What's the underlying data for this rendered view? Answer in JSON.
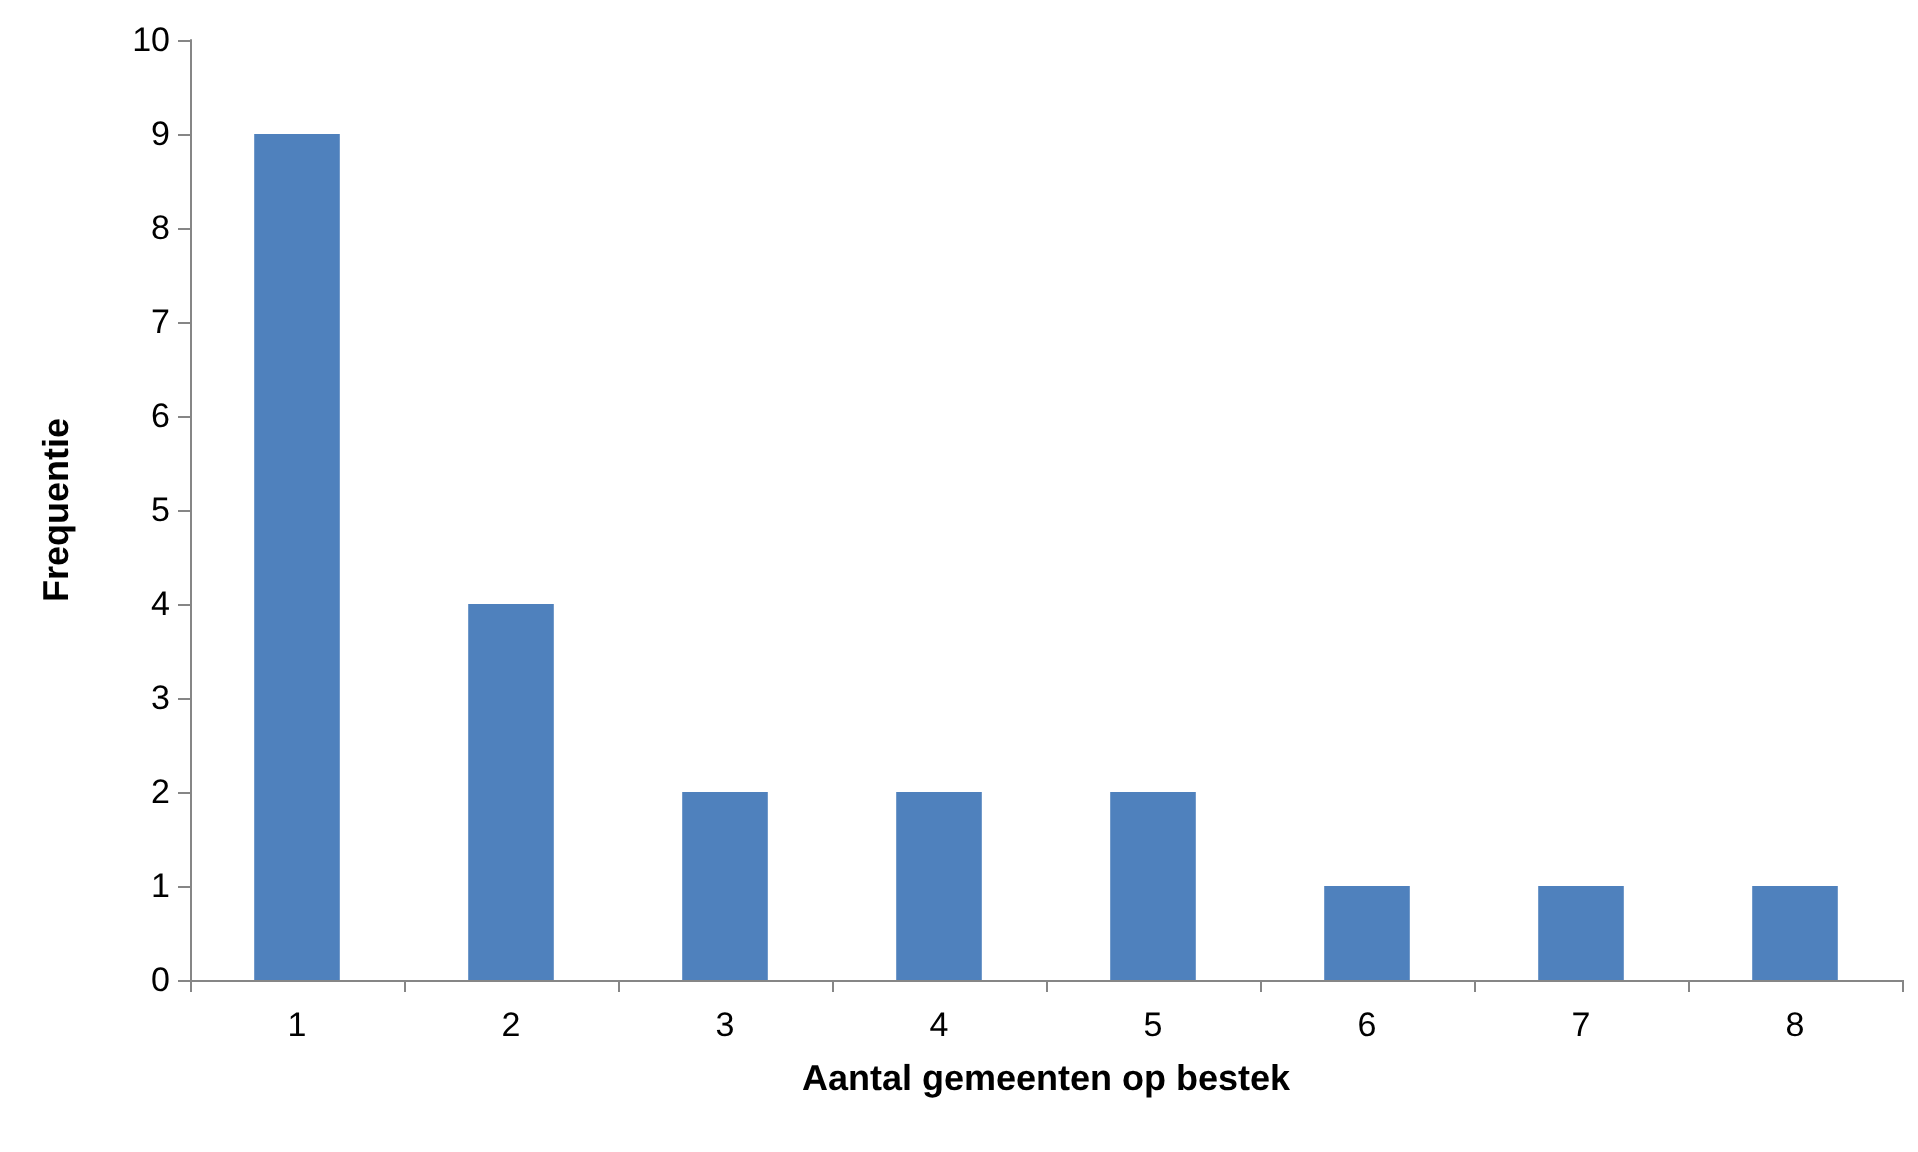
{
  "chart_data": {
    "type": "bar",
    "xlabel": "Aantal gemeenten op bestek",
    "ylabel": "Frequentie",
    "categories": [
      "1",
      "2",
      "3",
      "4",
      "5",
      "6",
      "7",
      "8"
    ],
    "values": [
      9,
      4,
      2,
      2,
      2,
      1,
      1,
      1
    ],
    "color": "#4f81bd",
    "ylim": [
      0,
      10
    ],
    "yticks": [
      0,
      1,
      2,
      3,
      4,
      5,
      6,
      7,
      8,
      9,
      10
    ],
    "grid": false
  }
}
